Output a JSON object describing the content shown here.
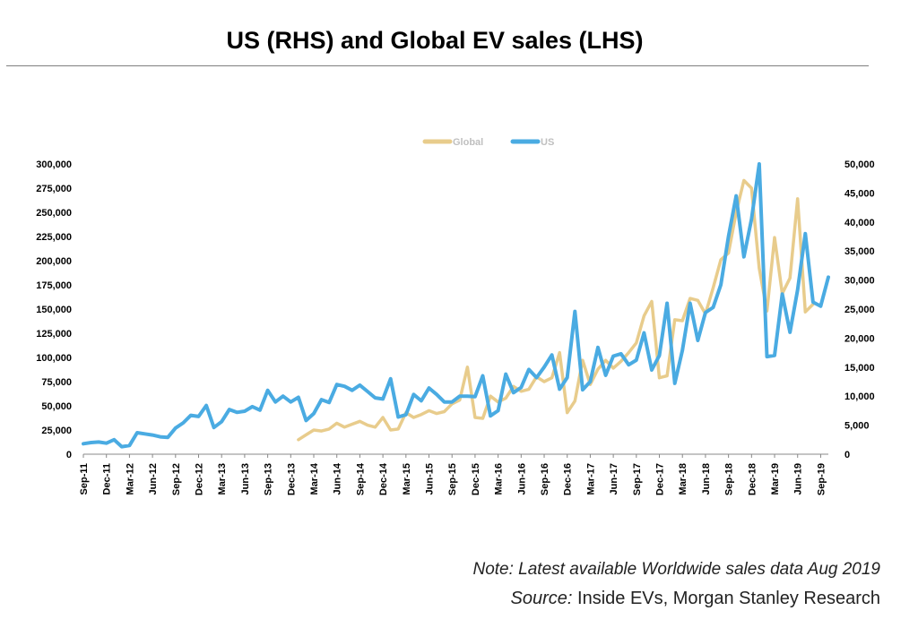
{
  "title": "US (RHS) and Global EV sales (LHS)",
  "note": "Note: Latest available Worldwide sales data Aug 2019",
  "source_label": "Source:",
  "source_text": " Inside EVs, Morgan Stanley Research",
  "colors": {
    "Global": "#e8cc8c",
    "US": "#4aabe2"
  },
  "chart_data": {
    "type": "line",
    "legend": [
      "Global",
      "US"
    ],
    "legend_position": "top-center",
    "x_tick_labels": [
      "Sep-11",
      "Dec-11",
      "Mar-12",
      "Jun-12",
      "Sep-12",
      "Dec-12",
      "Mar-13",
      "Jun-13",
      "Sep-13",
      "Dec-13",
      "Mar-14",
      "Jun-14",
      "Sep-14",
      "Dec-14",
      "Mar-15",
      "Jun-15",
      "Sep-15",
      "Dec-15",
      "Mar-16",
      "Jun-16",
      "Sep-16",
      "Dec-16",
      "Mar-17",
      "Jun-17",
      "Sep-17",
      "Dec-17",
      "Mar-18",
      "Jun-18",
      "Sep-18",
      "Dec-18",
      "Mar-19",
      "Jun-19",
      "Sep-19"
    ],
    "left_axis": {
      "min": 0,
      "max": 300000,
      "ticks": [
        "0",
        "25,000",
        "50,000",
        "75,000",
        "100,000",
        "125,000",
        "150,000",
        "175,000",
        "200,000",
        "225,000",
        "250,000",
        "275,000",
        "300,000"
      ]
    },
    "right_axis": {
      "min": 0,
      "max": 50000,
      "ticks": [
        "0",
        "5,000",
        "10,000",
        "15,000",
        "20,000",
        "25,000",
        "30,000",
        "35,000",
        "40,000",
        "45,000",
        "50,000"
      ]
    },
    "series": [
      {
        "name": "Global",
        "axis": "left",
        "start_month": "Jan-14",
        "values": [
          15000,
          20000,
          25000,
          24000,
          26000,
          32000,
          28000,
          31000,
          34000,
          30000,
          28000,
          38000,
          25000,
          26000,
          43000,
          38000,
          41000,
          45000,
          42000,
          44000,
          52000,
          56000,
          90000,
          38000,
          37000,
          60000,
          54000,
          58000,
          70000,
          65000,
          67000,
          80000,
          75000,
          79000,
          105000,
          43000,
          55000,
          97000,
          72000,
          88000,
          97000,
          89000,
          96000,
          105000,
          115000,
          143000,
          158000,
          79000,
          81000,
          139000,
          138000,
          161000,
          159000,
          145000,
          172000,
          201000,
          208000,
          250000,
          283000,
          275000,
          192000,
          148000,
          224000,
          166000,
          182000,
          264000,
          147000,
          155000
        ]
      },
      {
        "name": "US",
        "axis": "right",
        "start_month": "Sep-11",
        "values": [
          1800,
          2000,
          2100,
          1900,
          2500,
          1300,
          1500,
          3700,
          3500,
          3300,
          3000,
          2900,
          4500,
          5400,
          6700,
          6500,
          8400,
          4600,
          5600,
          7700,
          7200,
          7400,
          8200,
          7600,
          11000,
          9000,
          10000,
          9000,
          9800,
          5800,
          7000,
          9400,
          8900,
          12000,
          11700,
          11000,
          11900,
          10800,
          9700,
          9500,
          13000,
          6400,
          6800,
          10300,
          9200,
          11400,
          10300,
          9000,
          9000,
          10000,
          10000,
          9900,
          13500,
          6600,
          7500,
          13800,
          10600,
          11500,
          14600,
          13200,
          15000,
          17100,
          11200,
          13200,
          24600,
          11100,
          12500,
          18400,
          13600,
          16900,
          17300,
          15400,
          16200,
          20900,
          14500,
          17000,
          26000,
          12200,
          17900,
          26000,
          19600,
          24400,
          25300,
          29200,
          37500,
          44500,
          34000,
          40500,
          50000,
          16800,
          17000,
          27600,
          21000,
          28300,
          38000,
          26200,
          25500,
          30500
        ]
      }
    ]
  }
}
